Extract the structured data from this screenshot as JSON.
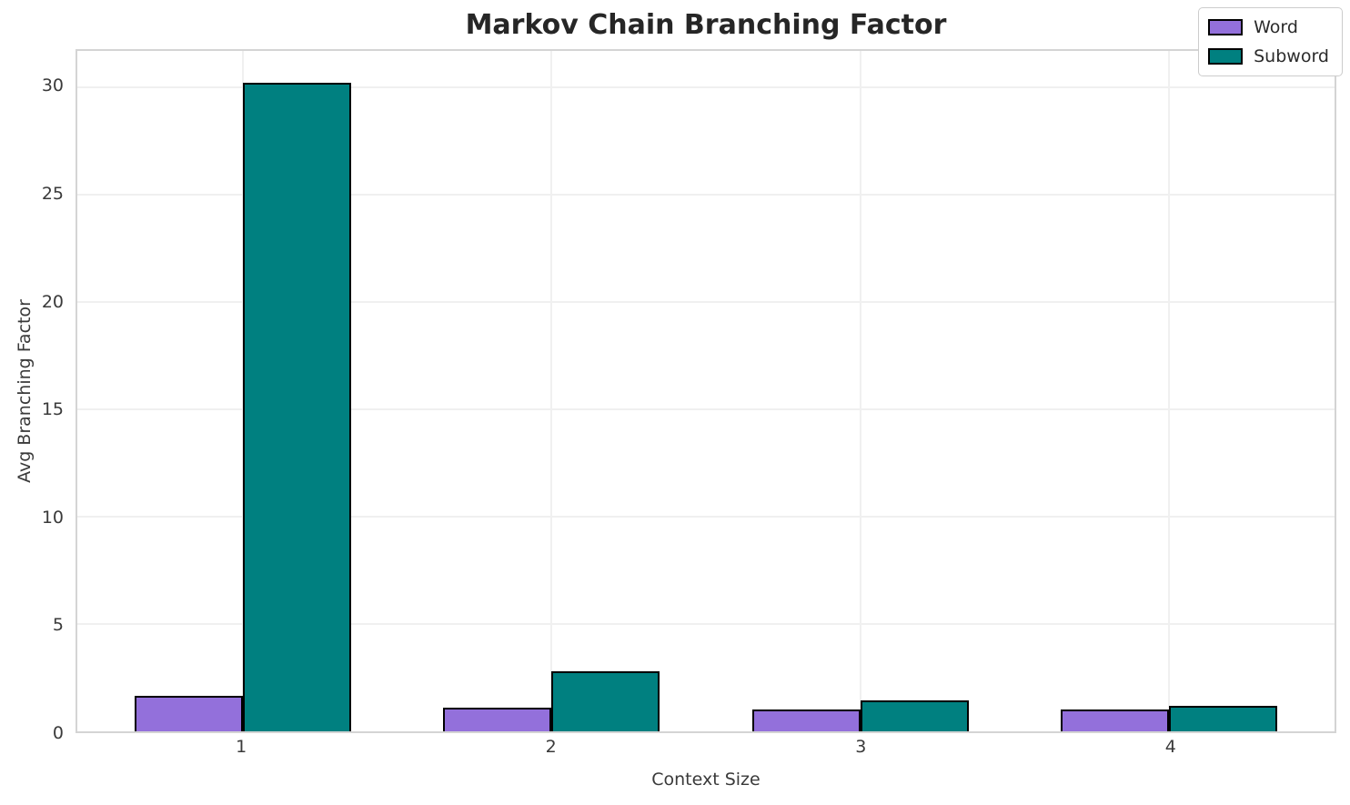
{
  "chart_data": {
    "type": "bar",
    "title": "Markov Chain Branching Factor",
    "xlabel": "Context Size",
    "ylabel": "Avg Branching Factor",
    "categories": [
      "1",
      "2",
      "3",
      "4"
    ],
    "x_positions": [
      1,
      2,
      3,
      4
    ],
    "series": [
      {
        "name": "Word",
        "color": "#9370DB",
        "values": [
          1.65,
          1.1,
          1.0,
          1.0
        ]
      },
      {
        "name": "Subword",
        "color": "#008080",
        "values": [
          30.2,
          2.8,
          1.45,
          1.2
        ]
      }
    ],
    "bar_width": 0.35,
    "bar_edge_color": "#000000",
    "yticks": [
      0,
      5,
      10,
      15,
      20,
      25,
      30
    ],
    "ylim": [
      0,
      31.7
    ],
    "xlim": [
      0.465,
      4.535
    ],
    "grid": true,
    "legend_position": "upper right",
    "colors": {
      "grid": "#f0f0f0",
      "spine": "#d4d4d4",
      "title_text": "#262626",
      "tick_text": "#3a3a3a",
      "legend_border": "#cccccc",
      "background": "#ffffff"
    }
  }
}
